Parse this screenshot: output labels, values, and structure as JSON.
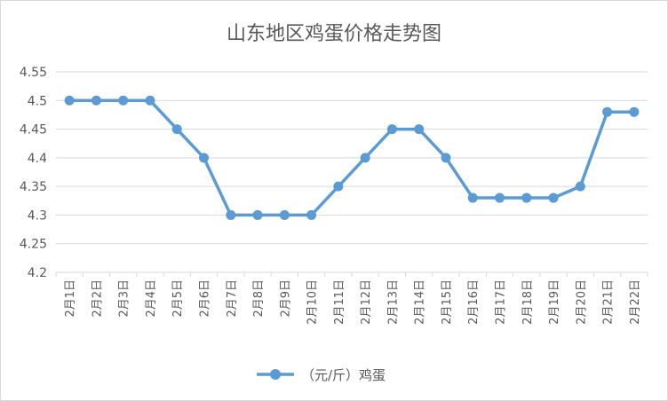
{
  "chart_data": {
    "type": "line",
    "title": "山东地区鸡蛋价格走势图",
    "categories": [
      "2月1日",
      "2月2日",
      "2月3日",
      "2月4日",
      "2月5日",
      "2月6日",
      "2月7日",
      "2月8日",
      "2月9日",
      "2月10日",
      "2月11日",
      "2月12日",
      "2月13日",
      "2月14日",
      "2月15日",
      "2月16日",
      "2月17日",
      "2月18日",
      "2月19日",
      "2月20日",
      "2月21日",
      "2月22日"
    ],
    "series": [
      {
        "name": "（元/斤）鸡蛋",
        "values": [
          4.5,
          4.5,
          4.5,
          4.5,
          4.45,
          4.4,
          4.3,
          4.3,
          4.3,
          4.3,
          4.35,
          4.4,
          4.45,
          4.45,
          4.4,
          4.33,
          4.33,
          4.33,
          4.33,
          4.35,
          4.48,
          4.48
        ]
      }
    ],
    "yticks": [
      "4.2",
      "4.25",
      "4.3",
      "4.35",
      "4.4",
      "4.45",
      "4.5",
      "4.55"
    ],
    "ylim": [
      4.2,
      4.55
    ],
    "grid": true,
    "legend": "bottom",
    "colors": {
      "series": "#5b9bd5",
      "grid": "#d9d9d9",
      "text": "#595959"
    }
  }
}
